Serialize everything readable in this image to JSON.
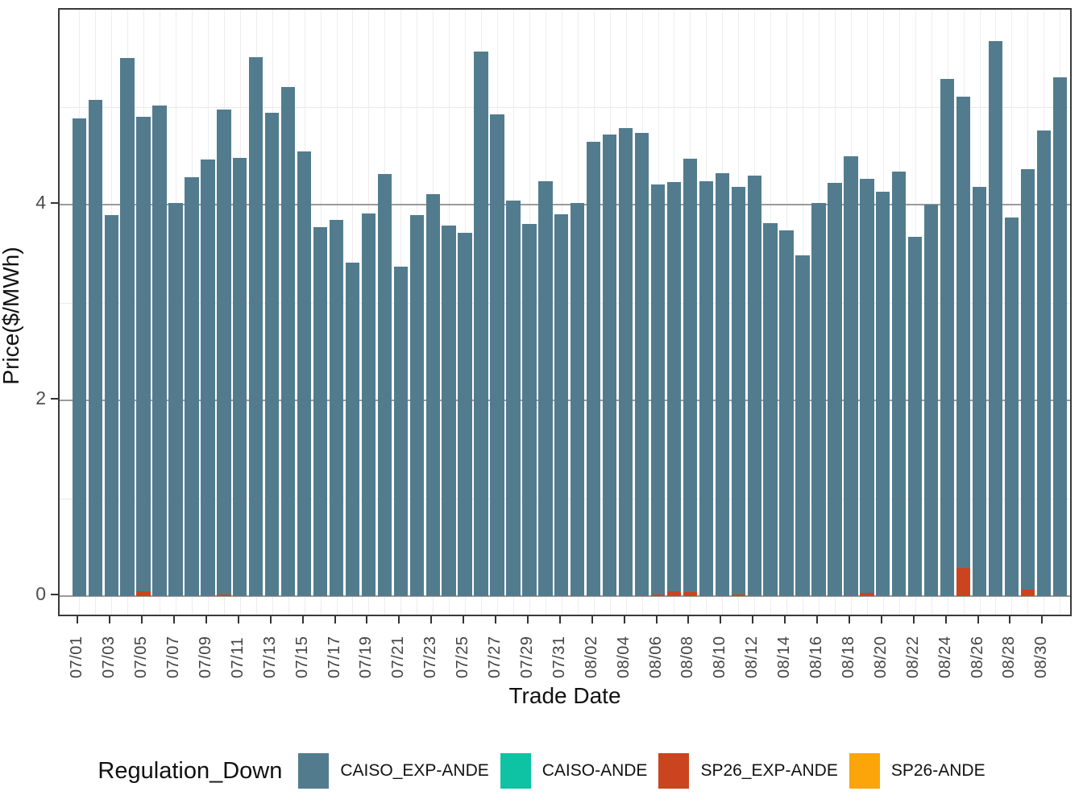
{
  "chart_data": {
    "type": "bar",
    "stacked": true,
    "xlabel": "Trade Date",
    "ylabel": "Price($/MWh)",
    "legend_title": "Regulation_Down",
    "legend_position": "bottom",
    "ylim": [
      0,
      6
    ],
    "yticks": [
      "0",
      "2",
      "4"
    ],
    "ytick_values": [
      0,
      2,
      4
    ],
    "yminor_values": [
      1,
      3,
      5
    ],
    "x_tick_every": 2,
    "grid": "on",
    "categories": [
      "07/01",
      "07/02",
      "07/03",
      "07/04",
      "07/05",
      "07/06",
      "07/07",
      "07/08",
      "07/09",
      "07/10",
      "07/11",
      "07/12",
      "07/13",
      "07/14",
      "07/15",
      "07/16",
      "07/17",
      "07/18",
      "07/19",
      "07/20",
      "07/21",
      "07/22",
      "07/23",
      "07/24",
      "07/25",
      "07/26",
      "07/27",
      "07/28",
      "07/29",
      "07/30",
      "07/31",
      "08/01",
      "08/02",
      "08/03",
      "08/04",
      "08/05",
      "08/06",
      "08/07",
      "08/08",
      "08/09",
      "08/10",
      "08/11",
      "08/12",
      "08/13",
      "08/14",
      "08/15",
      "08/16",
      "08/17",
      "08/18",
      "08/19",
      "08/20",
      "08/21",
      "08/22",
      "08/23",
      "08/24",
      "08/25",
      "08/26",
      "08/27",
      "08/28",
      "08/29",
      "08/30",
      "08/31"
    ],
    "series": [
      {
        "name": "SP26_EXP-ANDE",
        "color": "#C9441F",
        "values": [
          0,
          0,
          0,
          0,
          0.05,
          0,
          0,
          0,
          0,
          0.02,
          0,
          0,
          0,
          0,
          0,
          0,
          0,
          0,
          0,
          0,
          0,
          0,
          0,
          0,
          0,
          0,
          0,
          0,
          0,
          0,
          0,
          0,
          0,
          0,
          0,
          0,
          0.02,
          0.05,
          0.04,
          0,
          0,
          0.02,
          0,
          0,
          0,
          0,
          0,
          0,
          0,
          0.03,
          0,
          0,
          0,
          0,
          0,
          0.29,
          0,
          0,
          0,
          0.07,
          0,
          0
        ]
      },
      {
        "name": "CAISO_EXP-ANDE",
        "color": "#527C8E",
        "values": [
          4.88,
          5.07,
          3.89,
          5.5,
          4.85,
          5.01,
          4.02,
          4.28,
          4.46,
          4.95,
          4.48,
          5.51,
          4.94,
          5.2,
          4.54,
          3.77,
          3.84,
          3.41,
          3.91,
          4.31,
          3.37,
          3.89,
          4.11,
          3.79,
          3.71,
          5.56,
          4.92,
          4.04,
          3.8,
          4.24,
          3.9,
          4.02,
          4.64,
          4.72,
          4.78,
          4.73,
          4.19,
          4.18,
          4.43,
          4.24,
          4.32,
          4.16,
          4.3,
          3.81,
          3.74,
          3.48,
          4.02,
          4.22,
          4.49,
          4.23,
          4.13,
          4.34,
          3.67,
          4.0,
          5.28,
          4.81,
          4.18,
          5.67,
          3.87,
          4.29,
          4.76,
          5.3
        ]
      },
      {
        "name": "CAISO-ANDE",
        "color": "#0DC3A3",
        "values": [
          0,
          0,
          0,
          0,
          0,
          0,
          0,
          0,
          0,
          0,
          0,
          0,
          0,
          0,
          0,
          0,
          0,
          0,
          0,
          0,
          0,
          0,
          0,
          0,
          0,
          0,
          0,
          0,
          0,
          0,
          0,
          0,
          0,
          0,
          0,
          0,
          0,
          0,
          0,
          0,
          0,
          0,
          0,
          0,
          0,
          0,
          0,
          0,
          0,
          0,
          0,
          0,
          0,
          0,
          0,
          0,
          0,
          0,
          0,
          0,
          0,
          0
        ]
      },
      {
        "name": "SP26-ANDE",
        "color": "#FCA50A",
        "values": [
          0,
          0,
          0,
          0,
          0,
          0,
          0,
          0,
          0,
          0,
          0,
          0,
          0,
          0,
          0,
          0,
          0,
          0,
          0,
          0,
          0,
          0,
          0,
          0,
          0,
          0,
          0,
          0,
          0,
          0,
          0,
          0,
          0,
          0,
          0,
          0,
          0,
          0,
          0,
          0,
          0,
          0,
          0,
          0,
          0,
          0,
          0,
          0,
          0,
          0,
          0,
          0,
          0,
          0,
          0,
          0,
          0,
          0,
          0,
          0,
          0,
          0
        ]
      }
    ],
    "legend_order": [
      "CAISO_EXP-ANDE",
      "CAISO-ANDE",
      "SP26_EXP-ANDE",
      "SP26-ANDE"
    ]
  }
}
